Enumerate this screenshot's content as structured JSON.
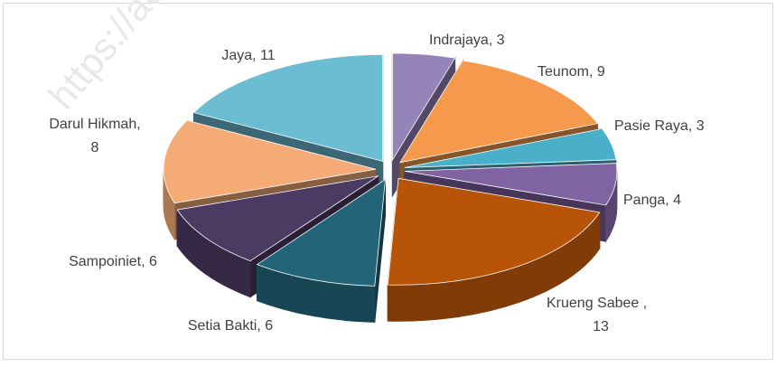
{
  "chart_data": {
    "type": "pie3d",
    "categories": [
      "Indrajaya",
      "Teunom",
      "Pasie Raya",
      "Panga",
      "Krueng Sabee",
      "Setia Bakti",
      "Sampoiniet",
      "Darul Hikmah",
      "Jaya"
    ],
    "values": [
      3,
      9,
      3,
      4,
      13,
      6,
      6,
      8,
      11
    ],
    "colors": [
      "#9484b8",
      "#f59a4c",
      "#4aafc8",
      "#8063a3",
      "#b85408",
      "#236478",
      "#4b3a62",
      "#f4ab75",
      "#6bbdd2"
    ],
    "watermark": "https://ac"
  }
}
